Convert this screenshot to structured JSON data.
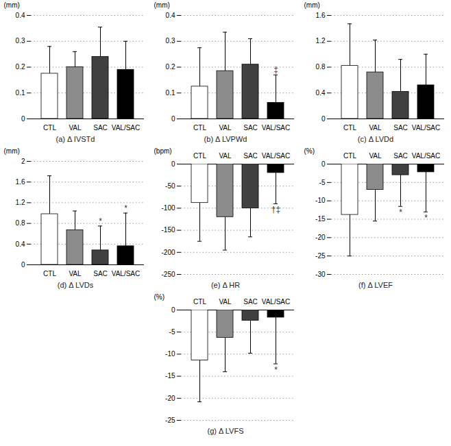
{
  "chart_data": [
    {
      "type": "bar",
      "title": "(a) Δ IVSTd",
      "categories": [
        "CTL",
        "VAL",
        "SAC",
        "VAL/SAC"
      ],
      "values": [
        0.175,
        0.2,
        0.24,
        0.19
      ],
      "errors": [
        0.105,
        0.06,
        0.115,
        0.11
      ],
      "annotations": [
        null,
        null,
        null,
        null
      ],
      "colors": [
        "#ffffff",
        "#8c8c8c",
        "#404040",
        "#000000"
      ],
      "ylabel": "(mm)",
      "ylim": [
        0,
        0.4
      ],
      "yticks": [
        0,
        0.1,
        0.2,
        0.3,
        0.4
      ],
      "grid": true
    },
    {
      "type": "bar",
      "title": "(b) Δ LVPWd",
      "categories": [
        "CTL",
        "VAL",
        "SAC",
        "VAL/SAC"
      ],
      "values": [
        0.125,
        0.185,
        0.21,
        0.062
      ],
      "errors": [
        0.15,
        0.15,
        0.1,
        0.108
      ],
      "annotations": [
        null,
        null,
        null,
        "‡"
      ],
      "colors": [
        "#ffffff",
        "#8c8c8c",
        "#404040",
        "#000000"
      ],
      "ylabel": "(mm)",
      "ylim": [
        0,
        0.4
      ],
      "yticks": [
        0,
        0.1,
        0.2,
        0.3,
        0.4
      ],
      "grid": true
    },
    {
      "type": "bar",
      "title": "(c) Δ LVDd",
      "categories": [
        "CTL",
        "VAL",
        "SAC",
        "VAL/SAC"
      ],
      "values": [
        0.82,
        0.72,
        0.42,
        0.52
      ],
      "errors": [
        0.65,
        0.5,
        0.5,
        0.48
      ],
      "annotations": [
        null,
        null,
        null,
        null
      ],
      "colors": [
        "#ffffff",
        "#8c8c8c",
        "#404040",
        "#000000"
      ],
      "ylabel": "(mm)",
      "ylim": [
        0,
        1.6
      ],
      "yticks": [
        0,
        0.4,
        0.8,
        1.2,
        1.6
      ],
      "grid": true
    },
    {
      "type": "bar",
      "title": "(d) Δ LVDs",
      "categories": [
        "CTL",
        "VAL",
        "SAC",
        "VAL/SAC"
      ],
      "values": [
        0.98,
        0.67,
        0.28,
        0.36
      ],
      "errors": [
        0.74,
        0.37,
        0.47,
        0.64
      ],
      "annotations": [
        null,
        null,
        "*",
        "*"
      ],
      "colors": [
        "#ffffff",
        "#8c8c8c",
        "#404040",
        "#000000"
      ],
      "ylabel": "(mm)",
      "ylim": [
        0,
        2
      ],
      "yticks": [
        0,
        0.4,
        0.8,
        1.2,
        1.6,
        2
      ],
      "grid": true
    },
    {
      "type": "bar",
      "title": "(e) Δ HR",
      "categories": [
        "CTL",
        "VAL",
        "SAC",
        "VAL/SAC"
      ],
      "values": [
        -88,
        -120,
        -100,
        -20
      ],
      "errors": [
        87,
        75,
        65,
        70
      ],
      "annotations": [
        null,
        null,
        null,
        "†‡"
      ],
      "colors": [
        "#ffffff",
        "#8c8c8c",
        "#404040",
        "#000000"
      ],
      "ylabel": "(bpm)",
      "ylim": [
        -250,
        0
      ],
      "yticks": [
        0,
        -50,
        -100,
        -150,
        -200,
        -250
      ],
      "grid": true
    },
    {
      "type": "bar",
      "title": "(f) Δ LVEF",
      "categories": [
        "CTL",
        "VAL",
        "SAC",
        "VAL/SAC"
      ],
      "values": [
        -13.8,
        -7,
        -3,
        -2.2
      ],
      "errors": [
        11.2,
        8.5,
        8.5,
        10.8
      ],
      "annotations": [
        null,
        null,
        "*",
        "*"
      ],
      "colors": [
        "#ffffff",
        "#8c8c8c",
        "#404040",
        "#000000"
      ],
      "ylabel": "(%)",
      "ylim": [
        -30,
        0
      ],
      "yticks": [
        0,
        -5,
        -10,
        -15,
        -20,
        -25,
        -30
      ],
      "grid": true
    },
    {
      "type": "bar",
      "title": "(g) Δ LVFS",
      "categories": [
        "CTL",
        "VAL",
        "SAC",
        "VAL/SAC"
      ],
      "values": [
        -11.4,
        -6.3,
        -2.4,
        -1.7
      ],
      "errors": [
        9.4,
        7.7,
        7.4,
        10.5
      ],
      "annotations": [
        null,
        null,
        null,
        "*"
      ],
      "colors": [
        "#ffffff",
        "#8c8c8c",
        "#404040",
        "#000000"
      ],
      "ylabel": "(%)",
      "ylim": [
        -25,
        0
      ],
      "yticks": [
        0,
        -5,
        -10,
        -15,
        -20,
        -25
      ],
      "grid": true
    }
  ]
}
